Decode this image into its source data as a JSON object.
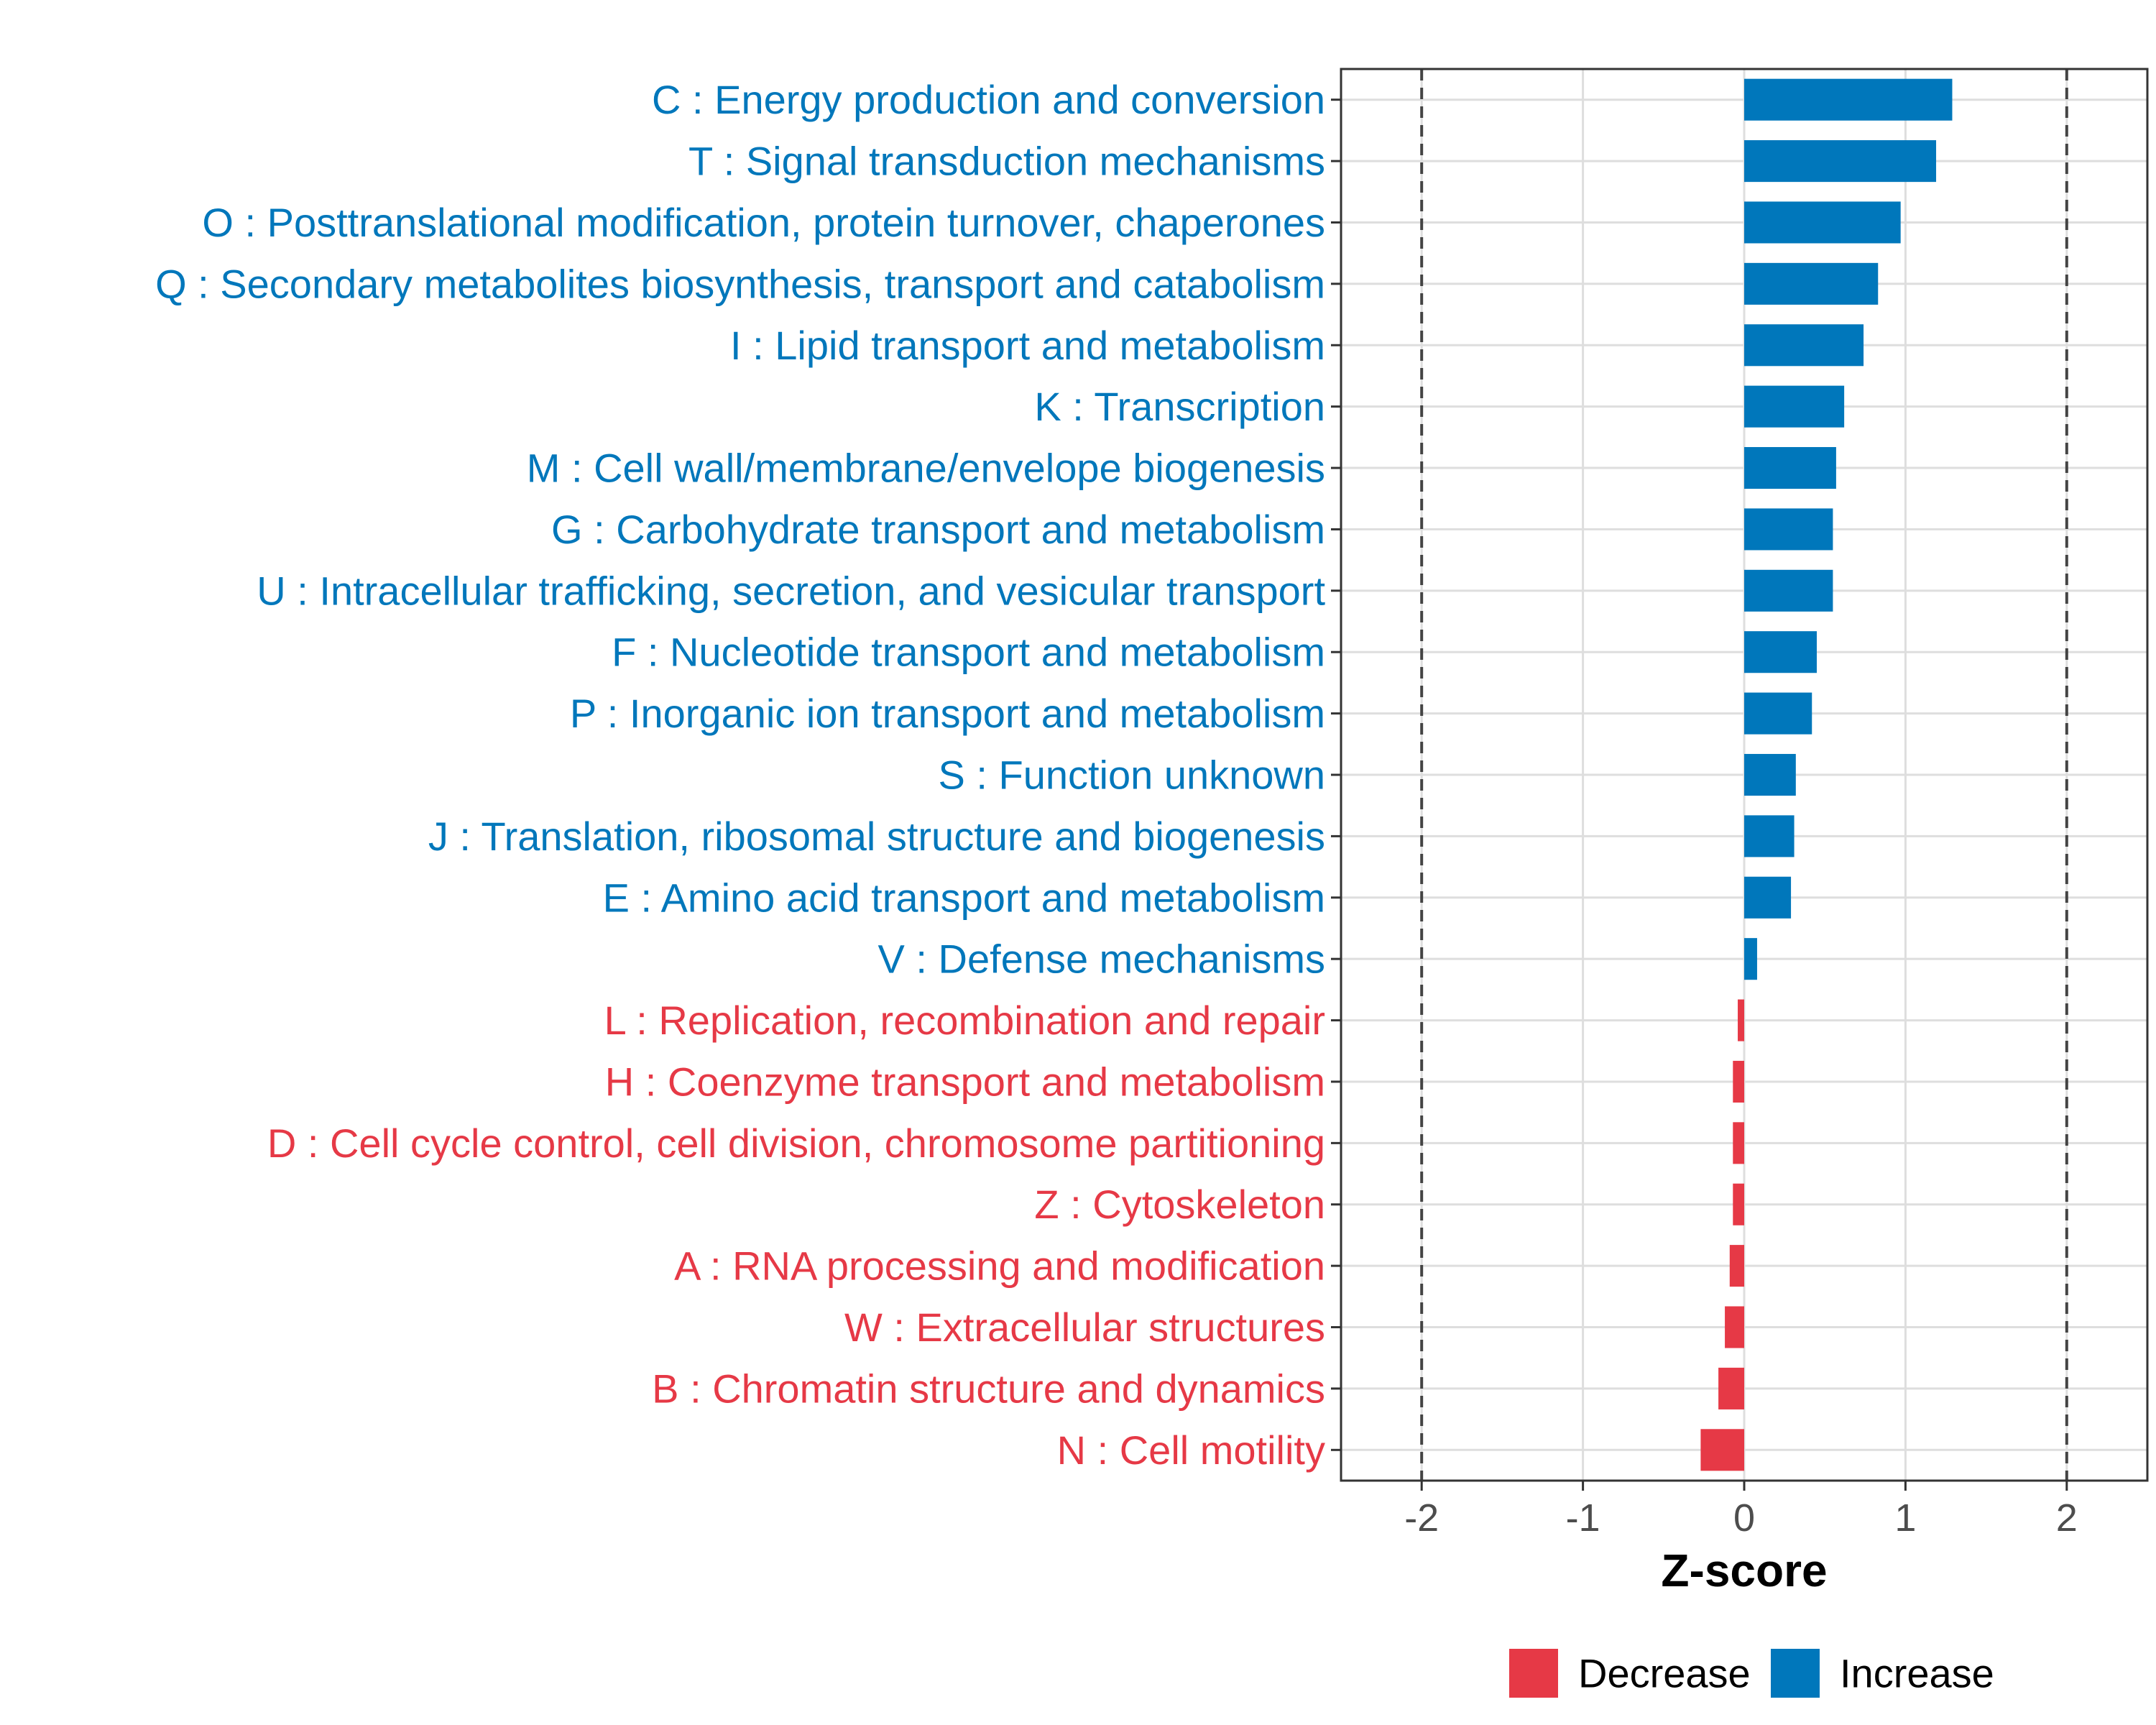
{
  "chart_data": {
    "type": "bar",
    "orientation": "horizontal",
    "title": "",
    "xlabel": "Z-score",
    "ylabel": "",
    "xlim": [
      -2.5,
      2.5
    ],
    "xticks": [
      -2,
      -1,
      0,
      1,
      2
    ],
    "xtick_labels": [
      "-2",
      "-1",
      "0",
      "1",
      "2"
    ],
    "reference_lines": [
      -2,
      2
    ],
    "grid": true,
    "colors": {
      "Increase": "#0077bb",
      "Decrease": "#e63946"
    },
    "legend": {
      "position": "bottom",
      "items": [
        {
          "label": "Decrease",
          "color": "#e63946"
        },
        {
          "label": "Increase",
          "color": "#0077bb"
        }
      ]
    },
    "categories": [
      "C : Energy production and conversion",
      "T : Signal transduction mechanisms",
      "O : Posttranslational modification, protein turnover, chaperones",
      "Q : Secondary metabolites biosynthesis, transport and catabolism",
      "I : Lipid transport and metabolism",
      "K : Transcription",
      "M : Cell wall/membrane/envelope biogenesis",
      "G : Carbohydrate transport and metabolism",
      "U : Intracellular trafficking, secretion, and vesicular transport",
      "F : Nucleotide transport and metabolism",
      "P : Inorganic ion transport and metabolism",
      "S : Function unknown",
      "J : Translation, ribosomal structure and biogenesis",
      "E : Amino acid transport and metabolism",
      "V : Defense mechanisms",
      "L : Replication, recombination and repair",
      "H : Coenzyme transport and metabolism",
      "D : Cell cycle control, cell division, chromosome partitioning",
      "Z : Cytoskeleton",
      "A : RNA processing and modification",
      "W : Extracellular structures",
      "B : Chromatin structure and dynamics",
      "N : Cell motility"
    ],
    "values": [
      1.29,
      1.19,
      0.97,
      0.83,
      0.74,
      0.62,
      0.57,
      0.55,
      0.55,
      0.45,
      0.42,
      0.32,
      0.31,
      0.29,
      0.08,
      -0.04,
      -0.07,
      -0.07,
      -0.07,
      -0.09,
      -0.12,
      -0.16,
      -0.27
    ],
    "groups": [
      "Increase",
      "Increase",
      "Increase",
      "Increase",
      "Increase",
      "Increase",
      "Increase",
      "Increase",
      "Increase",
      "Increase",
      "Increase",
      "Increase",
      "Increase",
      "Increase",
      "Increase",
      "Decrease",
      "Decrease",
      "Decrease",
      "Decrease",
      "Decrease",
      "Decrease",
      "Decrease",
      "Decrease"
    ]
  }
}
